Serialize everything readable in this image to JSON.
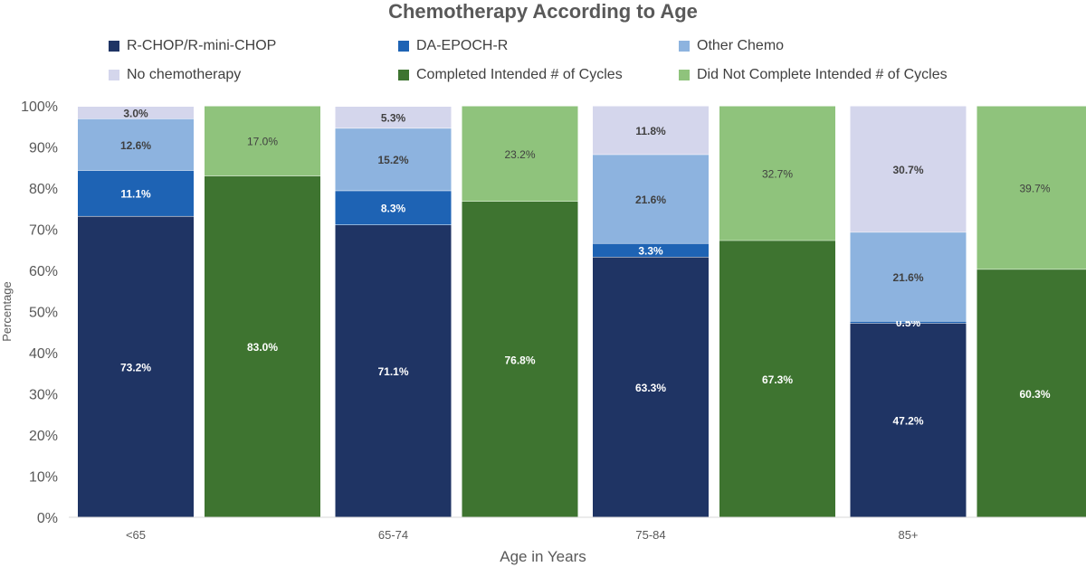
{
  "chart_data": {
    "type": "bar",
    "stacked": true,
    "title": "Chemotherapy According to Age",
    "xlabel": "Age in Years",
    "ylabel": "Percentage",
    "ylim": [
      0,
      100
    ],
    "yticks": [
      "0%",
      "10%",
      "20%",
      "30%",
      "40%",
      "50%",
      "60%",
      "70%",
      "80%",
      "90%",
      "100%"
    ],
    "grid": false,
    "legend_position": "top",
    "categories": [
      "<65",
      "65-74",
      "75-84",
      "85+"
    ],
    "legend": [
      {
        "name": "R-CHOP/R-mini-CHOP",
        "color": "#1f3464"
      },
      {
        "name": "DA-EPOCH-R",
        "color": "#1e63b4"
      },
      {
        "name": "Other Chemo",
        "color": "#8db3df"
      },
      {
        "name": "No chemotherapy",
        "color": "#d4d6ec"
      },
      {
        "name": "Completed Intended # of Cycles",
        "color": "#3e7430"
      },
      {
        "name": "Did Not Complete Intended # of Cycles",
        "color": "#8fc37c"
      }
    ],
    "stacks": [
      {
        "group": "chemotherapy",
        "series": [
          {
            "name": "R-CHOP/R-mini-CHOP",
            "values": [
              73.2,
              71.1,
              63.3,
              47.2
            ],
            "labels": [
              "73.2%",
              "71.1%",
              "63.3%",
              "47.2%"
            ],
            "color": "#1f3464",
            "label_color": "#ffffff"
          },
          {
            "name": "DA-EPOCH-R",
            "values": [
              11.1,
              8.3,
              3.3,
              0.5
            ],
            "labels": [
              "11.1%",
              "8.3%",
              "3.3%",
              "0.5%"
            ],
            "color": "#1e63b4",
            "label_color": "#ffffff"
          },
          {
            "name": "Other Chemo",
            "values": [
              12.6,
              15.2,
              21.6,
              21.6
            ],
            "labels": [
              "12.6%",
              "15.2%",
              "21.6%",
              "21.6%"
            ],
            "color": "#8db3df",
            "label_color": "#404040"
          },
          {
            "name": "No chemotherapy",
            "values": [
              3.0,
              5.3,
              11.8,
              30.7
            ],
            "labels": [
              "3.0%",
              "5.3%",
              "11.8%",
              "30.7%"
            ],
            "color": "#d4d6ec",
            "label_color": "#404040"
          }
        ]
      },
      {
        "group": "cycles",
        "series": [
          {
            "name": "Completed Intended # of Cycles",
            "values": [
              83.0,
              76.8,
              67.3,
              60.3
            ],
            "labels": [
              "83.0%",
              "76.8%",
              "67.3%",
              "60.3%"
            ],
            "color": "#3e7430",
            "label_color": "#ffffff"
          },
          {
            "name": "Did Not Complete Intended # of Cycles",
            "values": [
              17.0,
              23.2,
              32.7,
              39.7
            ],
            "labels": [
              "17.0%",
              "23.2%",
              "32.7%",
              "39.7%"
            ],
            "color": "#8fc37c",
            "label_color": "#404040"
          }
        ]
      }
    ]
  }
}
